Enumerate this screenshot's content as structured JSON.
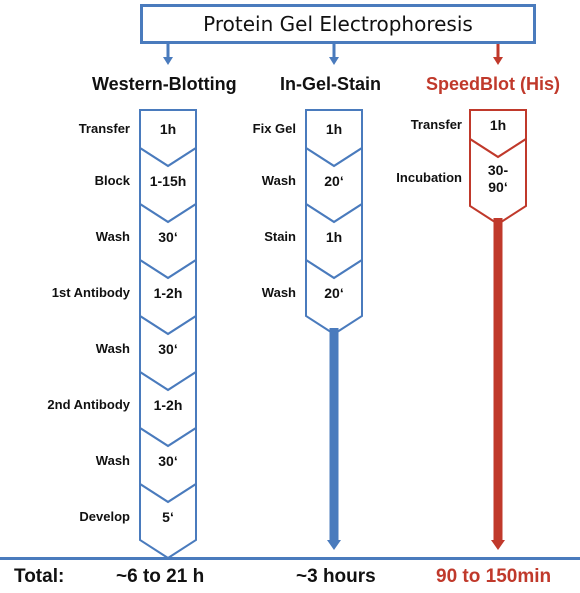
{
  "title": "Protein Gel Electrophoresis",
  "colors": {
    "blue": "#4a7bbd",
    "red": "#c0392b",
    "text": "#111111"
  },
  "columns": [
    {
      "id": "western",
      "heading": "Western-Blotting",
      "color": "blue",
      "steps": [
        {
          "label": "Transfer",
          "duration": "1h"
        },
        {
          "label": "Block",
          "duration": "1-15h"
        },
        {
          "label": "Wash",
          "duration": "30‘"
        },
        {
          "label": "1st Antibody",
          "duration": "1-2h"
        },
        {
          "label": "Wash",
          "duration": "30‘"
        },
        {
          "label": "2nd Antibody",
          "duration": "1-2h"
        },
        {
          "label": "Wash",
          "duration": "30‘"
        },
        {
          "label": "Develop",
          "duration": "5‘"
        }
      ],
      "total": "~6 to 21 h"
    },
    {
      "id": "ingel",
      "heading": "In-Gel-Stain",
      "color": "blue",
      "steps": [
        {
          "label": "Fix Gel",
          "duration": "1h"
        },
        {
          "label": "Wash",
          "duration": "20‘"
        },
        {
          "label": "Stain",
          "duration": "1h"
        },
        {
          "label": "Wash",
          "duration": "20‘"
        }
      ],
      "total": "~3 hours"
    },
    {
      "id": "speedblot",
      "heading": "SpeedBlot (His)",
      "color": "red",
      "steps": [
        {
          "label": "Transfer",
          "duration": "1h"
        },
        {
          "label": "Incubation",
          "duration": "30-\n90‘"
        }
      ],
      "total": "90 to 150min"
    }
  ],
  "total_label": "Total:"
}
